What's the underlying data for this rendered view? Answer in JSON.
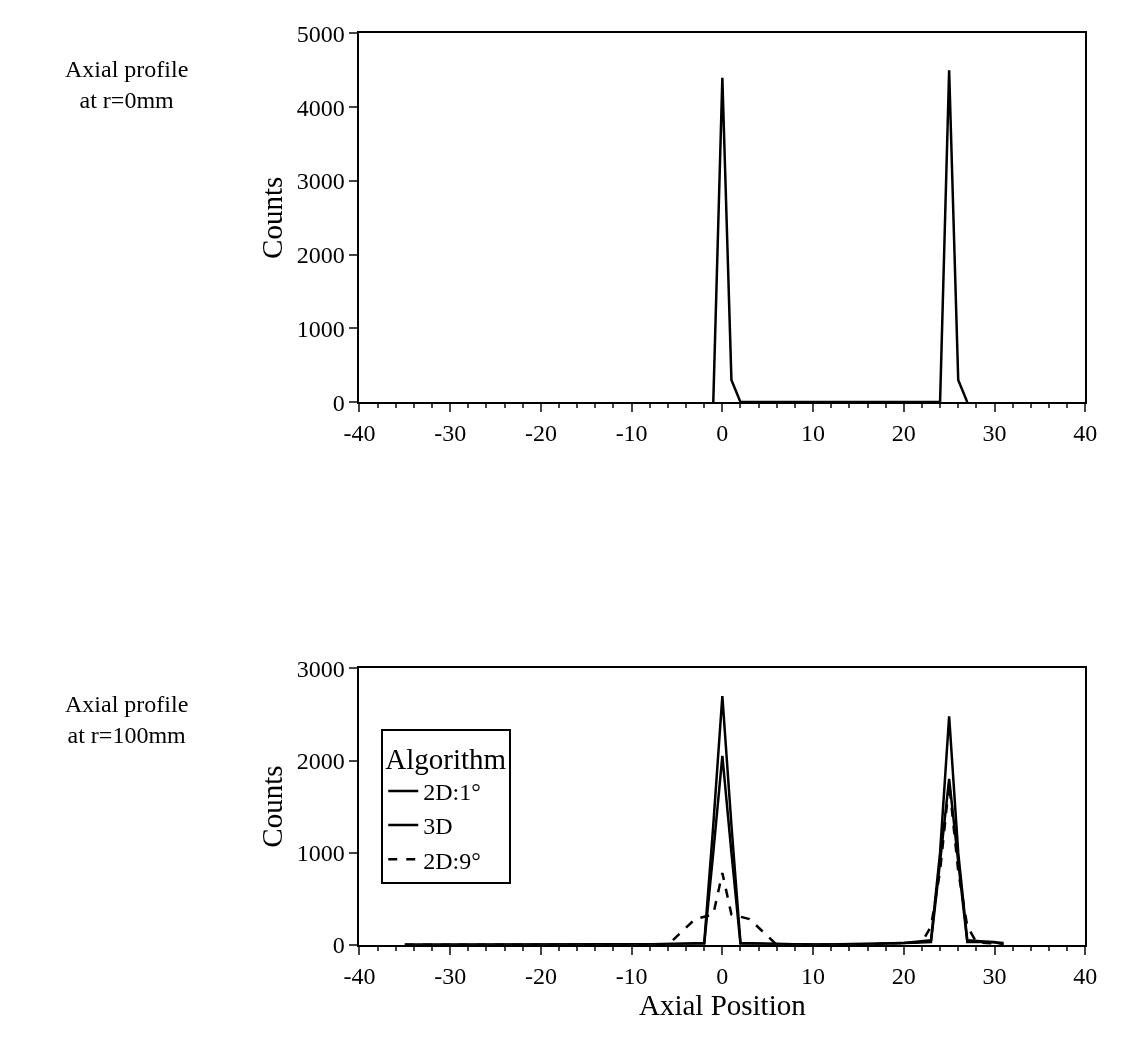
{
  "chart_data": [
    {
      "type": "line",
      "ylabel": "Counts",
      "annotations": [
        "Axial profile\nat r=0mm"
      ],
      "xlim": [
        -40,
        40
      ],
      "xticks": [
        -40,
        -30,
        -20,
        -10,
        0,
        10,
        20,
        30,
        40
      ],
      "ylim": [
        0,
        5000
      ],
      "yticks": [
        0,
        1000,
        2000,
        3000,
        4000,
        5000
      ],
      "legend": false,
      "series": [
        {
          "color": "#000000",
          "line_style": "solid",
          "x": [
            -1,
            0,
            1,
            2,
            24,
            25,
            26,
            27
          ],
          "values": [
            0,
            4400,
            300,
            0,
            0,
            4500,
            300,
            0
          ]
        }
      ]
    },
    {
      "type": "line",
      "ylabel": "Counts",
      "xlabel": "Axial Position",
      "legend_title": "Algorithm",
      "annotations": [
        "Axial profile\nat r=100mm"
      ],
      "xlim": [
        -40,
        40
      ],
      "xticks": [
        -40,
        -30,
        -20,
        -10,
        0,
        10,
        20,
        30,
        40
      ],
      "ylim": [
        0,
        3000
      ],
      "yticks": [
        0,
        1000,
        2000,
        3000
      ],
      "legend": "left",
      "series": [
        {
          "name": "2D:1°",
          "color": "#000000",
          "line_style": "solid",
          "x": [
            -35,
            -10,
            -2,
            -1,
            0,
            1,
            2,
            10,
            20,
            23,
            24,
            25,
            26,
            27,
            31
          ],
          "values": [
            0,
            0,
            20,
            1300,
            2700,
            1300,
            20,
            0,
            20,
            50,
            1000,
            2480,
            1000,
            50,
            20
          ]
        },
        {
          "name": "3D",
          "color": "#000000",
          "line_style": "solid",
          "x": [
            -35,
            -2,
            -1,
            0,
            1,
            2,
            15,
            23,
            24,
            25,
            26,
            27,
            30,
            31
          ],
          "values": [
            0,
            10,
            1000,
            2050,
            1000,
            10,
            0,
            30,
            900,
            1800,
            900,
            30,
            30,
            0
          ]
        },
        {
          "name": "2D:9°",
          "color": "#000000",
          "line_style": "dashed",
          "x": [
            -35,
            -6,
            -3,
            -1,
            0,
            1,
            3,
            6,
            15,
            22,
            23,
            24,
            25,
            26,
            27,
            28,
            31
          ],
          "values": [
            0,
            0,
            280,
            330,
            780,
            330,
            280,
            0,
            0,
            30,
            200,
            800,
            1750,
            800,
            200,
            30,
            0
          ]
        }
      ]
    }
  ]
}
